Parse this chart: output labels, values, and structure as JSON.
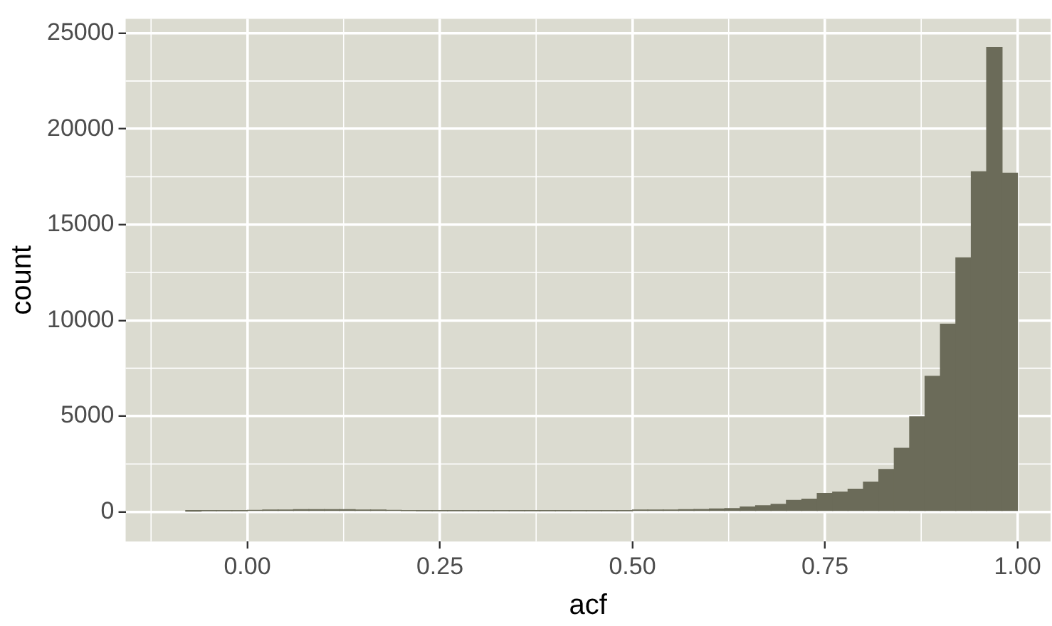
{
  "chart_data": {
    "type": "histogram",
    "xlabel": "acf",
    "ylabel": "count",
    "color": "#6b6b59",
    "bins": [
      -0.08,
      -0.06,
      -0.04,
      -0.02,
      0.0,
      0.02,
      0.04,
      0.06,
      0.08,
      0.1,
      0.12,
      0.14,
      0.16,
      0.18,
      0.2,
      0.22,
      0.24,
      0.26,
      0.28,
      0.3,
      0.32,
      0.34,
      0.36,
      0.38,
      0.4,
      0.42,
      0.44,
      0.46,
      0.48,
      0.5,
      0.52,
      0.54,
      0.56,
      0.58,
      0.6,
      0.62,
      0.64,
      0.66,
      0.68,
      0.7,
      0.72,
      0.74,
      0.76,
      0.78,
      0.8,
      0.82,
      0.84,
      0.86,
      0.88,
      0.9,
      0.92,
      0.94,
      0.96,
      0.98,
      1.0
    ],
    "values": [
      30,
      50,
      50,
      50,
      80,
      100,
      100,
      110,
      110,
      110,
      110,
      100,
      100,
      80,
      60,
      50,
      50,
      50,
      50,
      50,
      50,
      50,
      50,
      50,
      50,
      50,
      50,
      50,
      50,
      100,
      100,
      100,
      110,
      120,
      150,
      170,
      250,
      320,
      390,
      600,
      660,
      960,
      1030,
      1180,
      1550,
      2210,
      3320,
      4960,
      7080,
      9800,
      13270,
      17760,
      24250,
      17690
    ],
    "xlim": [
      -0.158,
      1.043
    ],
    "xticks": [
      {
        "value": 0,
        "label": "0.00"
      },
      {
        "value": 0.25,
        "label": "0.25"
      },
      {
        "value": 0.5,
        "label": "0.50"
      },
      {
        "value": 0.75,
        "label": "0.75"
      },
      {
        "value": 1,
        "label": "1.00"
      }
    ],
    "ylim": [
      -1550,
      25750
    ],
    "yticks": [
      0,
      5000,
      10000,
      15000,
      20000,
      25000
    ],
    "grid": true
  }
}
